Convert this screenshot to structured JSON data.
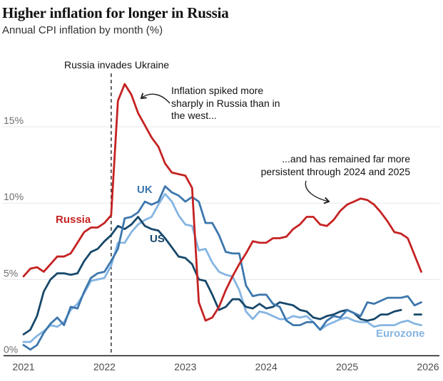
{
  "header": {
    "title": "Higher inflation for longer in Russia",
    "subtitle": "Annual CPI inflation by month (%)"
  },
  "chart_data": {
    "type": "line",
    "title": "Higher inflation for longer in Russia",
    "subtitle": "Annual CPI inflation by month (%)",
    "x_start": "2021-01",
    "x_interval": "month",
    "x_ticks": [
      "2021",
      "2022",
      "2023",
      "2024",
      "2025",
      "2026"
    ],
    "y_ticks": [
      {
        "value": 0,
        "label": "0%"
      },
      {
        "value": 5,
        "label": "5%"
      },
      {
        "value": 10,
        "label": "10%"
      },
      {
        "value": 15,
        "label": "15%"
      }
    ],
    "ylim": [
      0,
      18.5
    ],
    "grid": "horizontal",
    "legend_position": "inline-labels",
    "event_line": {
      "x": "2022-02",
      "label": "Russia invades Ukraine"
    },
    "annotations": [
      {
        "id": "spike",
        "text": "Inflation spiked more\nsharply in Russia than in\nthe west..."
      },
      {
        "id": "persistent",
        "text": "...and has remained far more\npersistent through 2024 and 2025"
      }
    ],
    "series": [
      {
        "id": "russia",
        "label": "Russia",
        "color": "#c52222",
        "values": [
          5.2,
          5.7,
          5.8,
          5.5,
          6.0,
          6.5,
          6.5,
          6.7,
          7.4,
          8.1,
          8.4,
          8.4,
          8.7,
          9.2,
          16.7,
          17.8,
          17.1,
          15.9,
          15.1,
          14.3,
          13.7,
          12.6,
          12.0,
          11.9,
          11.8,
          11.0,
          3.5,
          2.3,
          2.5,
          3.2,
          4.3,
          5.2,
          6.0,
          6.7,
          7.5,
          7.4,
          7.4,
          7.7,
          7.7,
          7.8,
          8.3,
          8.6,
          9.1,
          9.1,
          8.6,
          8.5,
          8.9,
          9.5,
          9.9,
          10.1,
          10.3,
          10.2,
          9.9,
          9.4,
          8.8,
          8.1,
          8.0,
          7.7,
          6.6,
          5.5
        ]
      },
      {
        "id": "uk",
        "label": "UK",
        "color": "#3d77ad",
        "values": [
          0.7,
          0.4,
          0.7,
          1.5,
          2.1,
          2.5,
          2.0,
          3.2,
          3.1,
          4.2,
          5.1,
          5.4,
          5.5,
          6.2,
          7.0,
          9.0,
          9.1,
          9.4,
          10.1,
          9.9,
          10.1,
          11.1,
          10.7,
          10.5,
          10.1,
          10.4,
          10.1,
          8.7,
          8.7,
          7.9,
          6.8,
          6.7,
          6.7,
          4.6,
          3.9,
          4.0,
          4.0,
          3.4,
          3.2,
          2.3,
          2.0,
          2.0,
          2.2,
          2.2,
          1.7,
          2.3,
          2.6,
          2.5,
          3.0,
          2.8,
          2.6,
          3.5,
          3.4,
          3.6,
          3.8,
          3.8,
          3.8,
          3.9,
          3.3,
          3.5
        ]
      },
      {
        "id": "us",
        "label": "US",
        "color": "#17486b",
        "values": [
          1.4,
          1.7,
          2.6,
          4.2,
          5.0,
          5.4,
          5.4,
          5.3,
          5.4,
          6.2,
          6.8,
          7.0,
          7.5,
          7.9,
          8.5,
          8.3,
          8.6,
          9.1,
          8.5,
          8.3,
          8.2,
          7.7,
          7.1,
          6.5,
          6.4,
          6.0,
          5.0,
          4.9,
          4.0,
          3.0,
          3.2,
          3.7,
          3.7,
          3.2,
          3.1,
          3.4,
          3.1,
          3.2,
          3.5,
          3.4,
          3.3,
          3.0,
          2.9,
          2.5,
          2.4,
          2.6,
          2.7,
          2.9,
          3.0,
          2.8,
          2.4,
          2.3,
          2.4,
          2.7,
          2.7,
          2.9,
          3.0,
          null,
          2.7,
          2.7
        ]
      },
      {
        "id": "eurozone",
        "label": "Eurozone",
        "color": "#85b5e2",
        "values": [
          0.9,
          0.9,
          1.3,
          1.6,
          2.0,
          1.9,
          2.2,
          3.0,
          3.4,
          4.1,
          4.9,
          5.0,
          5.1,
          5.9,
          7.4,
          7.4,
          8.1,
          8.6,
          8.9,
          9.1,
          9.9,
          10.6,
          10.1,
          9.2,
          8.6,
          8.5,
          6.9,
          7.0,
          6.1,
          5.5,
          5.3,
          5.2,
          4.3,
          2.9,
          2.4,
          2.9,
          2.8,
          2.6,
          2.4,
          2.4,
          2.6,
          2.5,
          2.6,
          2.2,
          1.7,
          2.0,
          2.2,
          2.4,
          2.5,
          2.3,
          2.2,
          2.2,
          1.9,
          2.0,
          2.0,
          2.0,
          2.2,
          2.3,
          2.1,
          2.0
        ]
      }
    ],
    "colors": {
      "grid": "#e7e7e7",
      "axis": "#121212",
      "event_line": "#3f3f3f",
      "annotation_text": "#121212"
    }
  }
}
